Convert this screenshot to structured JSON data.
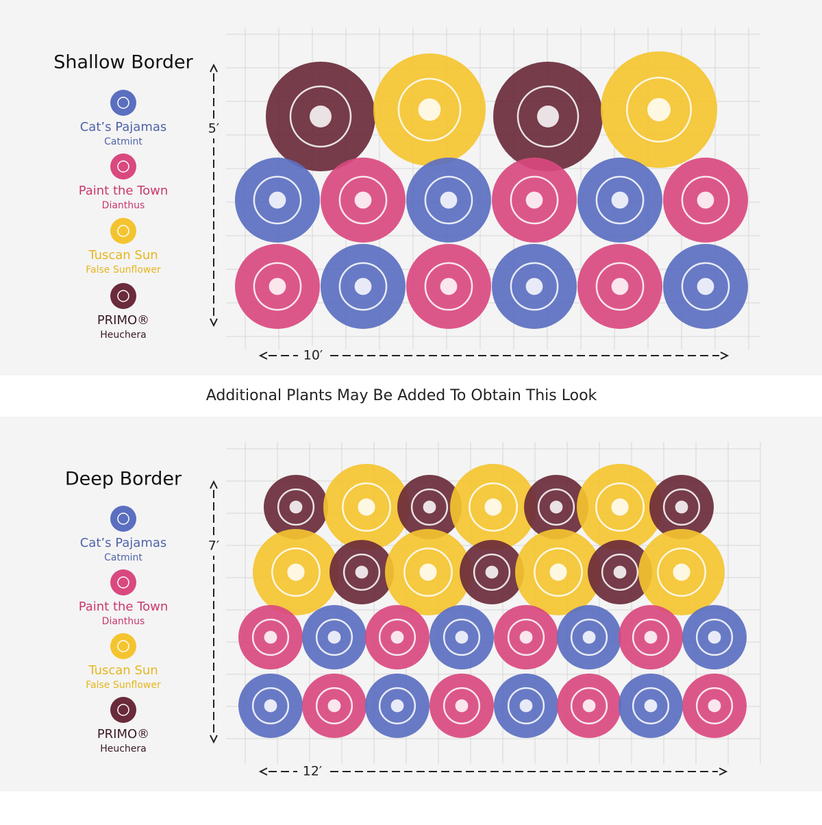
{
  "panels": [
    {
      "title": "Shallow Border",
      "legend": [
        {
          "name": "Cat’s Pajamas",
          "type": "Catmint"
        },
        {
          "name": "Paint the Town",
          "type": "Dianthus"
        },
        {
          "name": "Tuscan Sun",
          "type": "False Sunflower"
        },
        {
          "name": "PRIMO®",
          "type": "Heuchera"
        }
      ],
      "height": "5′",
      "width": "10′"
    },
    {
      "title": "Deep Border",
      "legend": [
        {
          "name": "Cat’s Pajamas",
          "type": "Catmint"
        },
        {
          "name": "Paint the Town",
          "type": "Dianthus"
        },
        {
          "name": "Tuscan Sun",
          "type": "False Sunflower"
        },
        {
          "name": "PRIMO®",
          "type": "Heuchera"
        }
      ],
      "height": "7′",
      "width": "12′"
    }
  ],
  "note": "Additional Plants May Be Added To Obtain This Look"
}
